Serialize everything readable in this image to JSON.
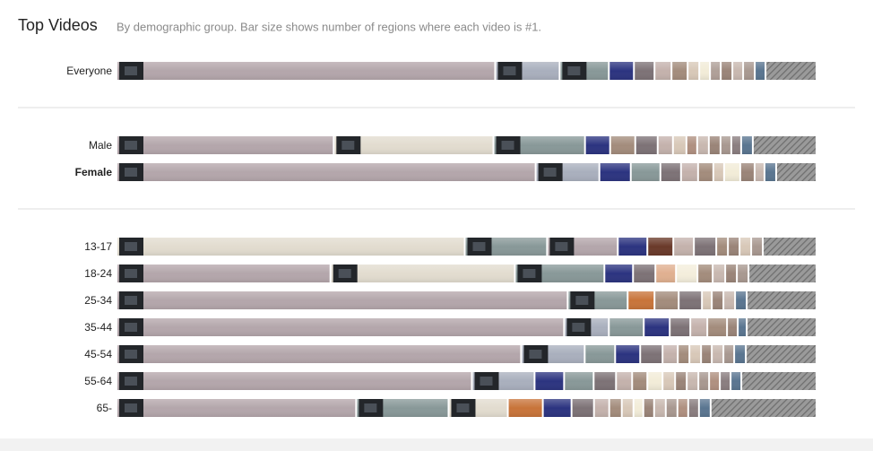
{
  "header": {
    "title": "Top Videos",
    "subtitle": "By demographic group. Bar size shows number of regions where each video is #1."
  },
  "chart_data": {
    "type": "stacked-bar",
    "groups": [
      {
        "rows": [
          {
            "label": "Everyone",
            "bold": false,
            "other": 55,
            "segments": [
              {
                "value": 423,
                "color": "#b4a6ab"
              },
              {
                "value": 72,
                "color": "#a9afbd"
              },
              {
                "value": 55,
                "color": "#889898"
              },
              {
                "value": 28,
                "color": "#2c3480"
              },
              {
                "value": 23,
                "color": "#7d7276"
              },
              {
                "value": 19,
                "color": "#c4b2ac"
              },
              {
                "value": 18,
                "color": "#a38c7c"
              },
              {
                "value": 13,
                "color": "#d8c8b8"
              },
              {
                "value": 12,
                "color": "#f2ecd8"
              },
              {
                "value": 12,
                "color": "#b0a098"
              },
              {
                "value": 13,
                "color": "#9a8478"
              },
              {
                "value": 12,
                "color": "#c8b8b0"
              },
              {
                "value": 13,
                "color": "#a89890"
              },
              {
                "value": 12,
                "color": "#5a7590"
              }
            ]
          }
        ]
      },
      {
        "rows": [
          {
            "label": "Male",
            "bold": false,
            "other": 69,
            "segments": [
              {
                "value": 242,
                "color": "#b4a6ab"
              },
              {
                "value": 178,
                "color": "#e2dccf"
              },
              {
                "value": 102,
                "color": "#889898"
              },
              {
                "value": 28,
                "color": "#2c3480"
              },
              {
                "value": 28,
                "color": "#a38c7c"
              },
              {
                "value": 25,
                "color": "#7d7276"
              },
              {
                "value": 17,
                "color": "#c4b2ac"
              },
              {
                "value": 15,
                "color": "#d8c8b8"
              },
              {
                "value": 12,
                "color": "#b09080"
              },
              {
                "value": 13,
                "color": "#c8b8b0"
              },
              {
                "value": 13,
                "color": "#9a8478"
              },
              {
                "value": 12,
                "color": "#a89890"
              },
              {
                "value": 11,
                "color": "#8a7e80"
              },
              {
                "value": 13,
                "color": "#5a7590"
              }
            ]
          },
          {
            "label": "Female",
            "bold": true,
            "other": 43,
            "segments": [
              {
                "value": 467,
                "color": "#b4a6ab"
              },
              {
                "value": 71,
                "color": "#a9afbd"
              },
              {
                "value": 35,
                "color": "#2c3480"
              },
              {
                "value": 33,
                "color": "#889898"
              },
              {
                "value": 23,
                "color": "#7d7276"
              },
              {
                "value": 19,
                "color": "#c4b2ac"
              },
              {
                "value": 17,
                "color": "#a38c7c"
              },
              {
                "value": 12,
                "color": "#d8c8b8"
              },
              {
                "value": 18,
                "color": "#f2ecd8"
              },
              {
                "value": 16,
                "color": "#9a8478"
              },
              {
                "value": 11,
                "color": "#c8b8b0"
              },
              {
                "value": 13,
                "color": "#5a7590"
              }
            ]
          }
        ]
      },
      {
        "rows": [
          {
            "label": "13-17",
            "bold": false,
            "other": 58,
            "segments": [
              {
                "value": 389,
                "color": "#e2dccf"
              },
              {
                "value": 92,
                "color": "#889898"
              },
              {
                "value": 79,
                "color": "#b4a6ab"
              },
              {
                "value": 33,
                "color": "#2c3480"
              },
              {
                "value": 29,
                "color": "#6a3a2a"
              },
              {
                "value": 23,
                "color": "#c4b2ac"
              },
              {
                "value": 25,
                "color": "#7d7276"
              },
              {
                "value": 13,
                "color": "#a38c7c"
              },
              {
                "value": 13,
                "color": "#9a8478"
              },
              {
                "value": 13,
                "color": "#d8c8b8"
              },
              {
                "value": 13,
                "color": "#a89890"
              }
            ]
          },
          {
            "label": "18-24",
            "bold": false,
            "other": 74,
            "segments": [
              {
                "value": 239,
                "color": "#b4a6ab"
              },
              {
                "value": 206,
                "color": "#e2dccf"
              },
              {
                "value": 100,
                "color": "#889898"
              },
              {
                "value": 32,
                "color": "#2c3480"
              },
              {
                "value": 25,
                "color": "#7d7276"
              },
              {
                "value": 23,
                "color": "#e0b090"
              },
              {
                "value": 24,
                "color": "#f4eedc"
              },
              {
                "value": 17,
                "color": "#a38c7c"
              },
              {
                "value": 14,
                "color": "#c8b8b0"
              },
              {
                "value": 13,
                "color": "#9a8478"
              },
              {
                "value": 13,
                "color": "#a89890"
              }
            ]
          },
          {
            "label": "25-34",
            "bold": false,
            "other": 76,
            "segments": [
              {
                "value": 504,
                "color": "#b4a6ab"
              },
              {
                "value": 67,
                "color": "#889898"
              },
              {
                "value": 30,
                "color": "#c8743a"
              },
              {
                "value": 27,
                "color": "#a38c7c"
              },
              {
                "value": 26,
                "color": "#7d7276"
              },
              {
                "value": 11,
                "color": "#d8c8b8"
              },
              {
                "value": 13,
                "color": "#9a8478"
              },
              {
                "value": 13,
                "color": "#c8b8b0"
              },
              {
                "value": 13,
                "color": "#5a7590"
              }
            ]
          },
          {
            "label": "35-44",
            "bold": false,
            "other": 76,
            "segments": [
              {
                "value": 500,
                "color": "#b4a6ab"
              },
              {
                "value": 50,
                "color": "#a9afbd"
              },
              {
                "value": 39,
                "color": "#889898"
              },
              {
                "value": 29,
                "color": "#2c3480"
              },
              {
                "value": 23,
                "color": "#7d7276"
              },
              {
                "value": 19,
                "color": "#c4b2ac"
              },
              {
                "value": 22,
                "color": "#a38c7c"
              },
              {
                "value": 12,
                "color": "#9a8478"
              },
              {
                "value": 10,
                "color": "#5a7590"
              }
            ]
          },
          {
            "label": "45-54",
            "bold": false,
            "other": 77,
            "segments": [
              {
                "value": 452,
                "color": "#b4a6ab"
              },
              {
                "value": 71,
                "color": "#a9afbd"
              },
              {
                "value": 34,
                "color": "#889898"
              },
              {
                "value": 28,
                "color": "#2c3480"
              },
              {
                "value": 25,
                "color": "#7d7276"
              },
              {
                "value": 17,
                "color": "#c4b2ac"
              },
              {
                "value": 13,
                "color": "#a38c7c"
              },
              {
                "value": 13,
                "color": "#d8c8b8"
              },
              {
                "value": 12,
                "color": "#9a8478"
              },
              {
                "value": 13,
                "color": "#c8b8b0"
              },
              {
                "value": 12,
                "color": "#a89890"
              },
              {
                "value": 13,
                "color": "#5a7590"
              }
            ]
          },
          {
            "label": "55-64",
            "bold": false,
            "other": 82,
            "segments": [
              {
                "value": 397,
                "color": "#b4a6ab"
              },
              {
                "value": 70,
                "color": "#a9afbd"
              },
              {
                "value": 33,
                "color": "#2c3480"
              },
              {
                "value": 33,
                "color": "#889898"
              },
              {
                "value": 25,
                "color": "#7d7276"
              },
              {
                "value": 18,
                "color": "#c4b2ac"
              },
              {
                "value": 17,
                "color": "#a38c7c"
              },
              {
                "value": 17,
                "color": "#f2ecd8"
              },
              {
                "value": 14,
                "color": "#d8c8b8"
              },
              {
                "value": 13,
                "color": "#9a8478"
              },
              {
                "value": 13,
                "color": "#c8b8b0"
              },
              {
                "value": 12,
                "color": "#a89890"
              },
              {
                "value": 12,
                "color": "#b09080"
              },
              {
                "value": 12,
                "color": "#8a7e80"
              },
              {
                "value": 12,
                "color": "#5a7590"
              }
            ]
          },
          {
            "label": "65-",
            "bold": false,
            "other": 116,
            "segments": [
              {
                "value": 267,
                "color": "#b4a6ab"
              },
              {
                "value": 103,
                "color": "#889898"
              },
              {
                "value": 66,
                "color": "#e2dccf"
              },
              {
                "value": 39,
                "color": "#c8743a"
              },
              {
                "value": 32,
                "color": "#2c3480"
              },
              {
                "value": 25,
                "color": "#7d7276"
              },
              {
                "value": 17,
                "color": "#c4b2ac"
              },
              {
                "value": 14,
                "color": "#a38c7c"
              },
              {
                "value": 13,
                "color": "#d8c8b8"
              },
              {
                "value": 11,
                "color": "#f2ecd8"
              },
              {
                "value": 12,
                "color": "#9a8478"
              },
              {
                "value": 13,
                "color": "#c8b8b0"
              },
              {
                "value": 13,
                "color": "#a89890"
              },
              {
                "value": 12,
                "color": "#b09080"
              },
              {
                "value": 12,
                "color": "#8a7e80"
              },
              {
                "value": 13,
                "color": "#5a7590"
              }
            ]
          }
        ]
      }
    ]
  }
}
